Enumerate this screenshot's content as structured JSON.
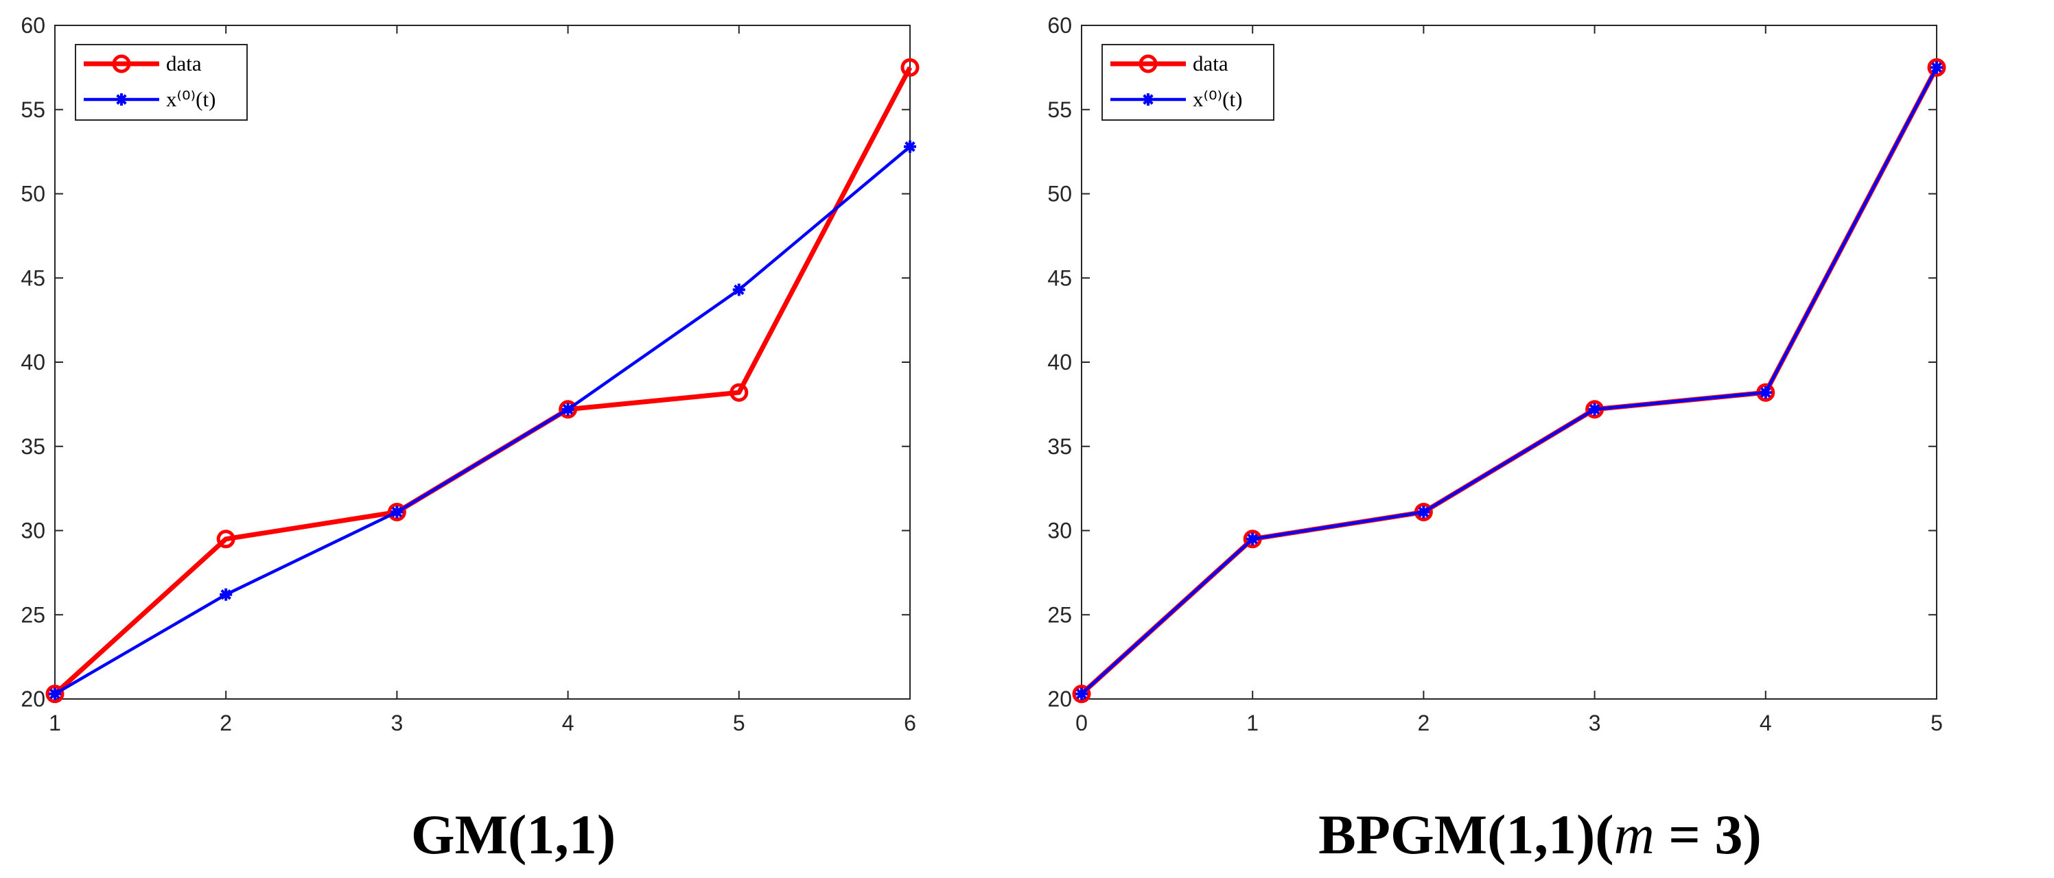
{
  "charts": [
    {
      "caption": "GM(1,1)",
      "chart_data": {
        "type": "line",
        "title": "",
        "xlabel": "",
        "ylabel": "",
        "xlim": [
          1,
          6
        ],
        "ylim": [
          20,
          60
        ],
        "xticks": [
          1,
          2,
          3,
          4,
          5,
          6
        ],
        "yticks": [
          20,
          25,
          30,
          35,
          40,
          45,
          50,
          55,
          60
        ],
        "grid": false,
        "legend_position": "top-left",
        "series": [
          {
            "name": "data",
            "color": "#ff0000",
            "marker": "circle",
            "x": [
              1,
              2,
              3,
              4,
              5,
              6
            ],
            "values": [
              20.3,
              29.5,
              31.1,
              37.2,
              38.2,
              57.5
            ]
          },
          {
            "name": "x⁽⁰⁾(t)",
            "color": "#0000ff",
            "marker": "asterisk",
            "x": [
              1,
              2,
              3,
              4,
              5,
              6
            ],
            "values": [
              20.3,
              26.2,
              31.1,
              37.2,
              44.3,
              52.8
            ]
          }
        ]
      }
    },
    {
      "caption": "BPGM(1,1)(m = 3)",
      "chart_data": {
        "type": "line",
        "title": "",
        "xlabel": "",
        "ylabel": "",
        "xlim": [
          0,
          5
        ],
        "ylim": [
          20,
          60
        ],
        "xticks": [
          0,
          1,
          2,
          3,
          4,
          5
        ],
        "yticks": [
          20,
          25,
          30,
          35,
          40,
          45,
          50,
          55,
          60
        ],
        "grid": false,
        "legend_position": "top-left",
        "series": [
          {
            "name": "data",
            "color": "#ff0000",
            "marker": "circle",
            "x": [
              0,
              1,
              2,
              3,
              4,
              5
            ],
            "values": [
              20.3,
              29.5,
              31.1,
              37.2,
              38.2,
              57.5
            ]
          },
          {
            "name": "x⁽⁰⁾(t)",
            "color": "#0000ff",
            "marker": "asterisk",
            "x": [
              0,
              1,
              2,
              3,
              4,
              5
            ],
            "values": [
              20.3,
              29.5,
              31.1,
              37.2,
              38.2,
              57.5
            ]
          }
        ]
      }
    }
  ]
}
